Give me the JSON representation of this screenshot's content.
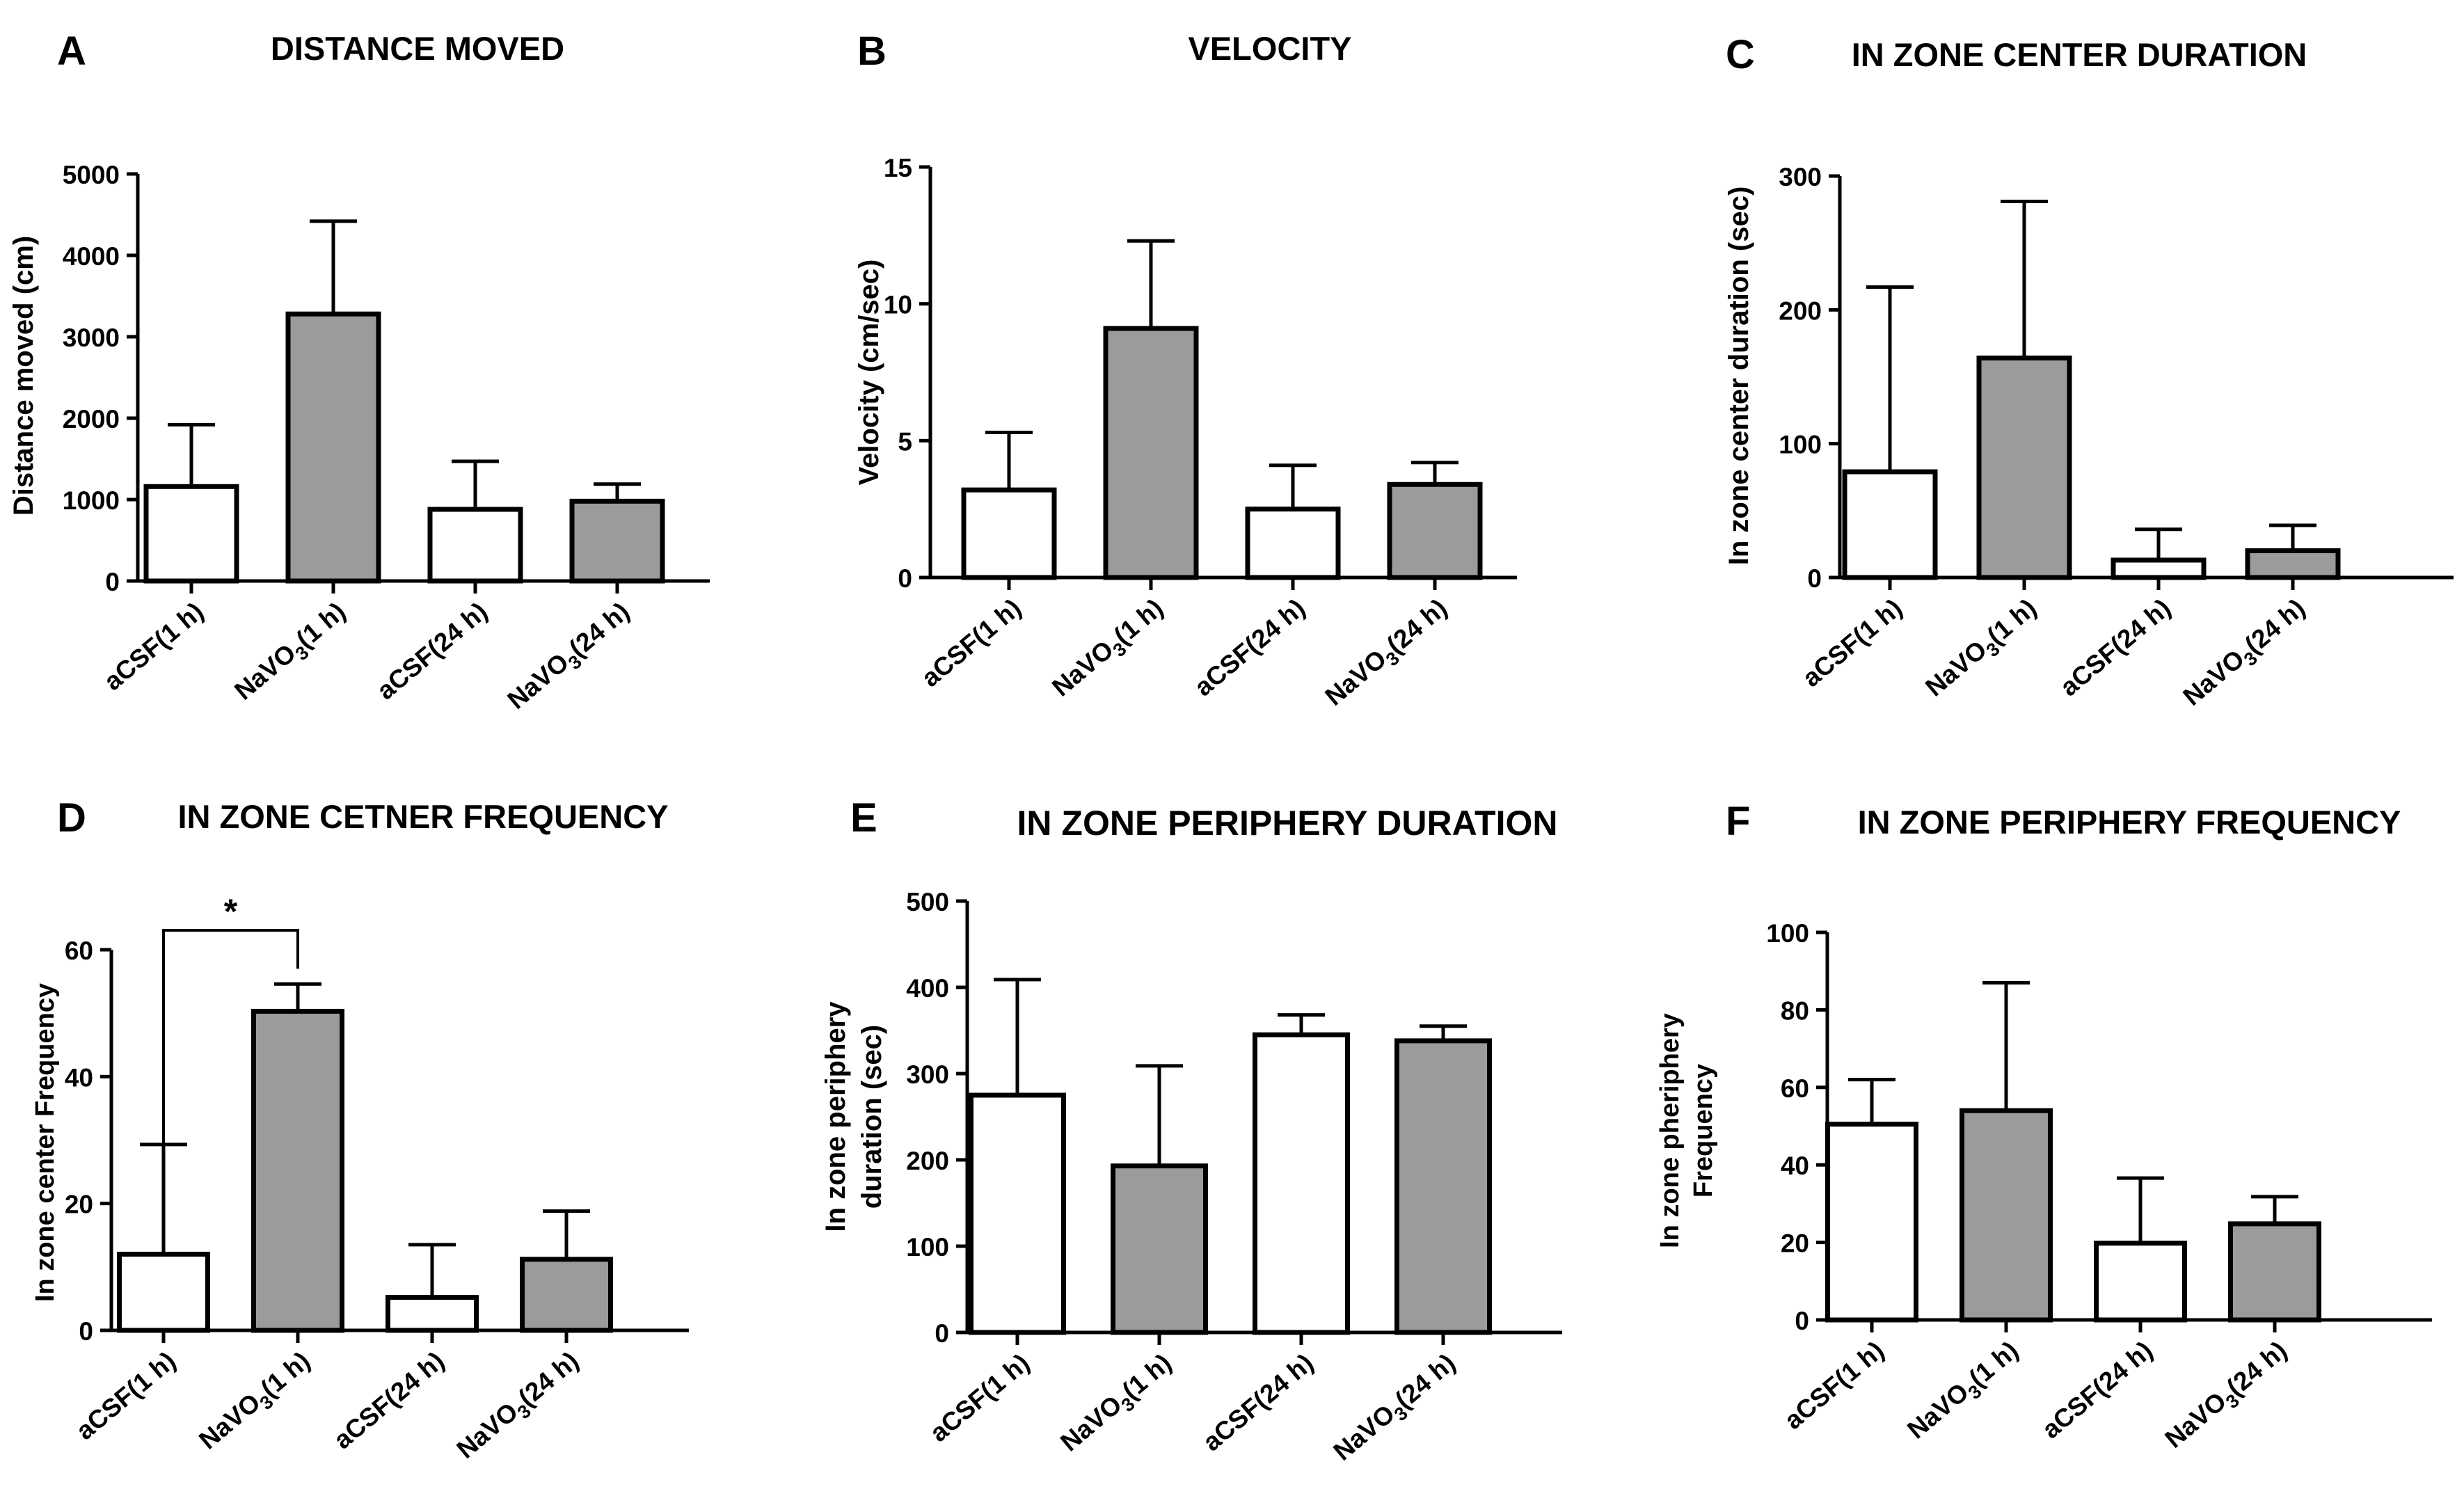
{
  "colors": {
    "filled": "#9b9b9b",
    "open": "#ffffff",
    "ink": "#000000"
  },
  "chart_data": [
    {
      "panel": "A",
      "type": "bar",
      "title": "DISTANCE MOVED",
      "ylabel": "Distance moved (cm)",
      "ylim": [
        0,
        5000
      ],
      "yticks": [
        "0",
        "1000",
        "2000",
        "3000",
        "4000",
        "5000"
      ],
      "categories": [
        {
          "pre": "aCSF(1 h)",
          "sub": "",
          "post": ""
        },
        {
          "pre": "NaVO",
          "sub": "3",
          "post": "(1 h)"
        },
        {
          "pre": "aCSF(24 h)",
          "sub": "",
          "post": ""
        },
        {
          "pre": "NaVO",
          "sub": "3",
          "post": "(24 h)"
        }
      ],
      "values": [
        1160,
        3280,
        880,
        980
      ],
      "errors": [
        760,
        1140,
        590,
        210
      ],
      "fills": [
        "open",
        "filled",
        "open",
        "filled"
      ]
    },
    {
      "panel": "B",
      "type": "bar",
      "title": "VELOCITY",
      "ylabel": "Velocity (cm/sec)",
      "ylim": [
        0,
        15
      ],
      "yticks": [
        "0",
        "5",
        "10",
        "15"
      ],
      "categories": [
        {
          "pre": "aCSF(1 h)",
          "sub": "",
          "post": ""
        },
        {
          "pre": "NaVO",
          "sub": "3",
          "post": "(1 h)"
        },
        {
          "pre": "aCSF(24 h)",
          "sub": "",
          "post": ""
        },
        {
          "pre": "NaVO",
          "sub": "3",
          "post": "(24 h)"
        }
      ],
      "values": [
        3.2,
        9.1,
        2.5,
        3.4
      ],
      "errors": [
        2.1,
        3.2,
        1.6,
        0.8
      ],
      "fills": [
        "open",
        "filled",
        "open",
        "filled"
      ]
    },
    {
      "panel": "C",
      "type": "bar",
      "title": "IN ZONE CENTER DURATION",
      "ylabel": "In zone center duration (sec)",
      "ylim": [
        0,
        300
      ],
      "yticks": [
        "0",
        "100",
        "200",
        "300"
      ],
      "categories": [
        {
          "pre": "aCSF(1 h)",
          "sub": "",
          "post": ""
        },
        {
          "pre": "NaVO",
          "sub": "3",
          "post": "(1 h)"
        },
        {
          "pre": "aCSF(24 h)",
          "sub": "",
          "post": ""
        },
        {
          "pre": "NaVO",
          "sub": "3",
          "post": "(24 h)"
        }
      ],
      "values": [
        79,
        164,
        13,
        20
      ],
      "errors": [
        138,
        117,
        23,
        19
      ],
      "fills": [
        "open",
        "filled",
        "open",
        "filled"
      ]
    },
    {
      "panel": "D",
      "type": "bar",
      "title": "IN ZONE CETNER FREQUENCY",
      "ylabel": "In zone center Frequency",
      "ylim": [
        0,
        60
      ],
      "yticks": [
        "0",
        "20",
        "40",
        "60"
      ],
      "categories": [
        {
          "pre": "aCSF(1 h)",
          "sub": "",
          "post": ""
        },
        {
          "pre": "NaVO",
          "sub": "3",
          "post": "(1 h)"
        },
        {
          "pre": "aCSF(24 h)",
          "sub": "",
          "post": ""
        },
        {
          "pre": "NaVO",
          "sub": "3",
          "post": "(24 h)"
        }
      ],
      "values": [
        12,
        50.3,
        5.2,
        11.2
      ],
      "errors": [
        17.3,
        4.3,
        8.3,
        7.6
      ],
      "fills": [
        "open",
        "filled",
        "open",
        "filled"
      ],
      "significance": {
        "between": [
          0,
          1
        ],
        "label": "*"
      }
    },
    {
      "panel": "E",
      "type": "bar",
      "title": "IN ZONE PERIPHERY DURATION",
      "ylabel": [
        "In zone periphery",
        "duration (sec)"
      ],
      "ylim": [
        0,
        500
      ],
      "yticks": [
        "0",
        "100",
        "200",
        "300",
        "400",
        "500"
      ],
      "categories": [
        {
          "pre": "aCSF(1 h)",
          "sub": "",
          "post": ""
        },
        {
          "pre": "NaVO",
          "sub": "3",
          "post": "(1 h)"
        },
        {
          "pre": "aCSF(24 h)",
          "sub": "",
          "post": ""
        },
        {
          "pre": "NaVO",
          "sub": "3",
          "post": "(24 h)"
        }
      ],
      "values": [
        275,
        193,
        345,
        338
      ],
      "errors": [
        134,
        116,
        23,
        17
      ],
      "fills": [
        "open",
        "filled",
        "open",
        "filled"
      ]
    },
    {
      "panel": "F",
      "type": "bar",
      "title": "IN ZONE PERIPHERY FREQUENCY",
      "ylabel": [
        "In zone pheriphery",
        "Frequency"
      ],
      "ylim": [
        0,
        100
      ],
      "yticks": [
        "0",
        "20",
        "40",
        "60",
        "80",
        "100"
      ],
      "categories": [
        {
          "pre": "aCSF(1 h)",
          "sub": "",
          "post": ""
        },
        {
          "pre": "NaVO",
          "sub": "3",
          "post": "(1 h)"
        },
        {
          "pre": "aCSF(24 h)",
          "sub": "",
          "post": ""
        },
        {
          "pre": "NaVO",
          "sub": "3",
          "post": "(24 h)"
        }
      ],
      "values": [
        50.5,
        54,
        19.8,
        24.8
      ],
      "errors": [
        11.5,
        33,
        16.8,
        7
      ],
      "fills": [
        "open",
        "filled",
        "open",
        "filled"
      ]
    }
  ]
}
